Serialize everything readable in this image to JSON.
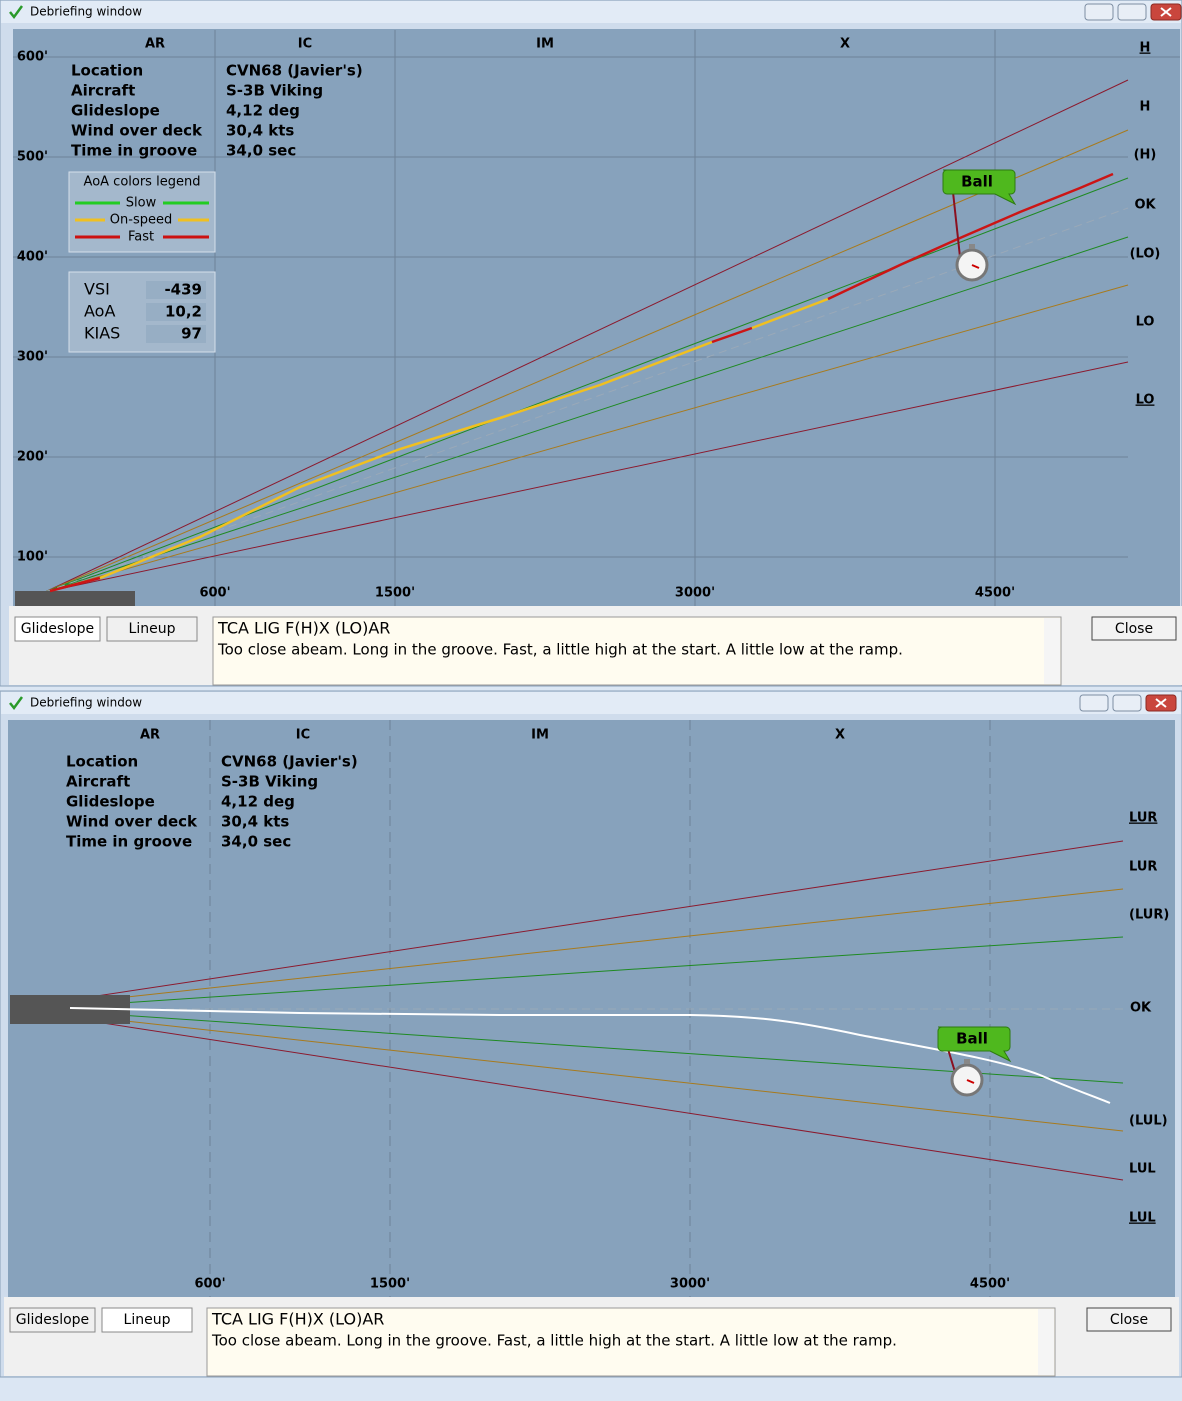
{
  "windows": [
    {
      "title": "Debriefing window",
      "phase_labels": [
        "AR",
        "IC",
        "IM",
        "X"
      ],
      "y_axis_labels": [
        "600'",
        "500'",
        "400'",
        "300'",
        "200'",
        "100'"
      ],
      "x_axis_labels": [
        "600'",
        "1500'",
        "3000'",
        "4500'"
      ],
      "deviation_labels": [
        "H",
        "H",
        "(H)",
        "OK",
        "(LO)",
        "LO",
        "LO"
      ],
      "info": [
        {
          "label": "Location",
          "value": "CVN68 (Javier's)"
        },
        {
          "label": "Aircraft",
          "value": "S-3B Viking"
        },
        {
          "label": "Glideslope",
          "value": "4,12 deg"
        },
        {
          "label": "Wind over deck",
          "value": "30,4 kts"
        },
        {
          "label": "Time in groove",
          "value": "34,0 sec"
        }
      ],
      "aoa_legend": {
        "title": "AoA colors legend",
        "items": [
          "Slow",
          "On-speed",
          "Fast"
        ]
      },
      "readouts": [
        {
          "label": "VSI",
          "value": -439
        },
        {
          "label": "AoA",
          "value": "10,2"
        },
        {
          "label": "KIAS",
          "value": 97
        }
      ],
      "ball_label": "Ball",
      "tabs": [
        "Glideslope",
        "Lineup"
      ],
      "grade": "TCA LIG F(H)X (LO)AR",
      "comment": "Too close abeam. Long in the groove. Fast, a little high at the start. A little low at the ramp.",
      "close_button": "Close"
    },
    {
      "title": "Debriefing window",
      "phase_labels": [
        "AR",
        "IC",
        "IM",
        "X"
      ],
      "x_axis_labels": [
        "600'",
        "1500'",
        "3000'",
        "4500'"
      ],
      "deviation_labels": [
        "LUR",
        "LUR",
        "(LUR)",
        "OK",
        "(LUL)",
        "LUL",
        "LUL"
      ],
      "info": [
        {
          "label": "Location",
          "value": "CVN68 (Javier's)"
        },
        {
          "label": "Aircraft",
          "value": "S-3B Viking"
        },
        {
          "label": "Glideslope",
          "value": "4,12 deg"
        },
        {
          "label": "Wind over deck",
          "value": "30,4 kts"
        },
        {
          "label": "Time in groove",
          "value": "34,0 sec"
        }
      ],
      "ball_label": "Ball",
      "tabs": [
        "Glideslope",
        "Lineup"
      ],
      "grade": "TCA LIG F(H)X (LO)AR",
      "comment": "Too close abeam. Long in the groove. Fast, a little high at the start. A little low at the ramp.",
      "close_button": "Close"
    }
  ]
}
